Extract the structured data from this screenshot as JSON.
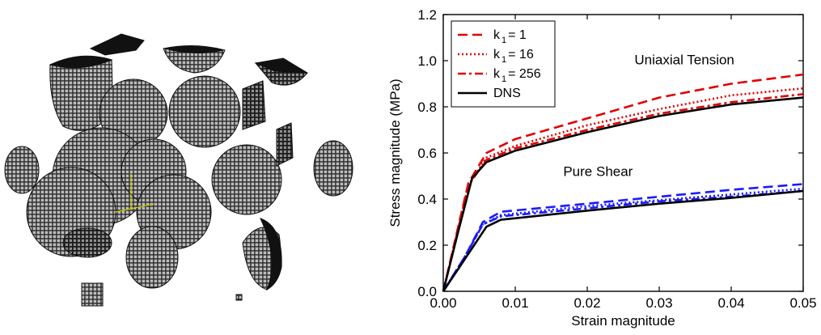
{
  "figure": {
    "left_panel": "voxelized-particle-microstructure"
  },
  "chart_data": {
    "type": "line",
    "xlabel": "Strain magnitude",
    "ylabel": "Stress magnitude (MPa)",
    "xlim": [
      0,
      0.05
    ],
    "ylim": [
      0,
      1.2
    ],
    "xticks": [
      0.0,
      0.01,
      0.02,
      0.03,
      0.04,
      0.05
    ],
    "xtick_labels": [
      "0.00",
      "0.01",
      "0.02",
      "0.03",
      "0.04",
      "0.05"
    ],
    "yticks": [
      0.0,
      0.2,
      0.4,
      0.6,
      0.8,
      1.0,
      1.2
    ],
    "ytick_labels": [
      "0.0",
      "0.2",
      "0.4",
      "0.6",
      "0.8",
      "1.0",
      "1.2"
    ],
    "grid": false,
    "legend": {
      "placement": "top-left",
      "entries": [
        {
          "prefix": "k",
          "sub": "1",
          "suffix": "= 1",
          "color": "#e00000",
          "dash": "long-dash"
        },
        {
          "prefix": "k",
          "sub": "1",
          "suffix": "= 16",
          "color": "#e00000",
          "dash": "dotted"
        },
        {
          "prefix": "k",
          "sub": "1",
          "suffix": "= 256",
          "color": "#e00000",
          "dash": "dash-dot"
        },
        {
          "prefix": "",
          "sub": "",
          "suffix": "DNS",
          "color": "#000000",
          "dash": "solid"
        }
      ]
    },
    "annotations": [
      {
        "text": "Uniaxial Tension",
        "x": 0.0335,
        "y": 0.985
      },
      {
        "text": "Pure Shear",
        "x": 0.0215,
        "y": 0.5
      }
    ],
    "series": [
      {
        "group": "tension",
        "legend": "k1 = 1",
        "color": "#e00000",
        "dash": "long-dash",
        "x": [
          0,
          0.002,
          0.0035,
          0.006,
          0.01,
          0.02,
          0.03,
          0.04,
          0.045,
          0.05
        ],
        "y": [
          0,
          0.27,
          0.47,
          0.6,
          0.66,
          0.75,
          0.84,
          0.9,
          0.92,
          0.94
        ]
      },
      {
        "group": "tension",
        "legend": "k1 = 16",
        "color": "#e00000",
        "dash": "dotted",
        "x": [
          0,
          0.002,
          0.0035,
          0.006,
          0.01,
          0.02,
          0.03,
          0.04,
          0.05
        ],
        "y": [
          0,
          0.26,
          0.46,
          0.58,
          0.63,
          0.72,
          0.79,
          0.85,
          0.88
        ]
      },
      {
        "group": "tension",
        "legend": "k1 = 256",
        "color": "#e00000",
        "dash": "dash-dot",
        "x": [
          0,
          0.002,
          0.0035,
          0.006,
          0.01,
          0.02,
          0.03,
          0.04,
          0.05
        ],
        "y": [
          0,
          0.26,
          0.46,
          0.57,
          0.62,
          0.7,
          0.77,
          0.82,
          0.855
        ]
      },
      {
        "group": "tension",
        "legend": "DNS",
        "color": "#000000",
        "dash": "solid",
        "x": [
          0,
          0.002,
          0.004,
          0.006,
          0.01,
          0.02,
          0.03,
          0.04,
          0.05
        ],
        "y": [
          0,
          0.25,
          0.49,
          0.56,
          0.61,
          0.69,
          0.76,
          0.81,
          0.84
        ]
      },
      {
        "group": "shear",
        "legend": "k1 = 1",
        "color": "#1a1aff",
        "dash": "long-dash",
        "x": [
          0,
          0.003,
          0.0055,
          0.008,
          0.02,
          0.03,
          0.04,
          0.05
        ],
        "y": [
          0,
          0.15,
          0.3,
          0.345,
          0.38,
          0.41,
          0.44,
          0.465
        ]
      },
      {
        "group": "shear",
        "legend": "k1 = 16",
        "color": "#1a1aff",
        "dash": "dotted",
        "x": [
          0,
          0.003,
          0.0055,
          0.008,
          0.02,
          0.03,
          0.04,
          0.05
        ],
        "y": [
          0,
          0.15,
          0.29,
          0.33,
          0.37,
          0.395,
          0.42,
          0.445
        ]
      },
      {
        "group": "shear",
        "legend": "k1 = 256",
        "color": "#1a1aff",
        "dash": "dash-dot",
        "x": [
          0,
          0.003,
          0.0055,
          0.008,
          0.02,
          0.03,
          0.04,
          0.05
        ],
        "y": [
          0,
          0.15,
          0.29,
          0.325,
          0.36,
          0.39,
          0.41,
          0.435
        ]
      },
      {
        "group": "shear",
        "legend": "DNS",
        "color": "#000000",
        "dash": "solid",
        "x": [
          0,
          0.003,
          0.006,
          0.008,
          0.02,
          0.03,
          0.04,
          0.05
        ],
        "y": [
          0,
          0.14,
          0.28,
          0.31,
          0.35,
          0.38,
          0.405,
          0.435
        ]
      }
    ]
  }
}
